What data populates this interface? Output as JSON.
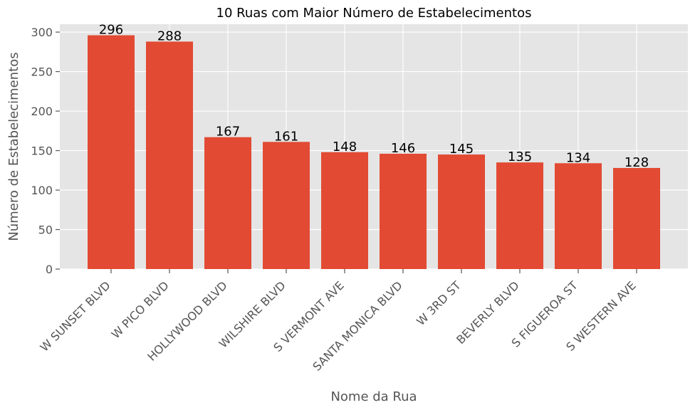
{
  "chart_data": {
    "type": "bar",
    "title": "10 Ruas com Maior Número de Estabelecimentos",
    "xlabel": "Nome da Rua",
    "ylabel": "Número de Estabelecimentos",
    "categories": [
      "W SUNSET BLVD",
      "W PICO BLVD",
      "HOLLYWOOD BLVD",
      "WILSHIRE BLVD",
      "S VERMONT AVE",
      "SANTA MONICA BLVD",
      "W 3RD ST",
      "BEVERLY BLVD",
      "S FIGUEROA ST",
      "S WESTERN AVE"
    ],
    "values": [
      296,
      288,
      167,
      161,
      148,
      146,
      145,
      135,
      134,
      128
    ],
    "yticks": [
      0,
      50,
      100,
      150,
      200,
      250,
      300
    ],
    "ylim": [
      0,
      310
    ],
    "grid": true,
    "colors": {
      "bar": "#E24A33",
      "plot_bg": "#E5E5E5",
      "grid": "#FFFFFF",
      "tick": "#555555"
    }
  }
}
